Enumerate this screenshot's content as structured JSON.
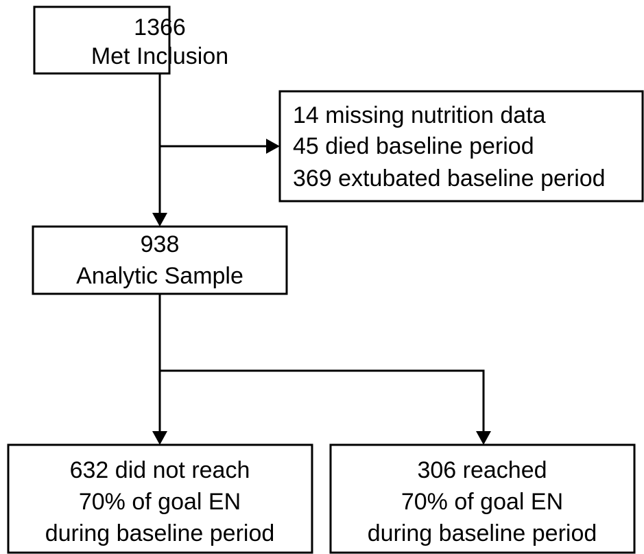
{
  "nodes": [
    {
      "lines": [
        "1366",
        "Met Inclusion"
      ]
    },
    {
      "lines": [
        "14 missing nutrition data",
        "45 died baseline period",
        "369 extubated baseline period"
      ]
    },
    {
      "lines": [
        "938",
        "Analytic Sample"
      ]
    },
    {
      "lines": [
        "632 did not reach",
        "70% of goal EN",
        "during baseline period"
      ]
    },
    {
      "lines": [
        "306 reached",
        "70% of goal EN",
        "during baseline period"
      ]
    }
  ]
}
